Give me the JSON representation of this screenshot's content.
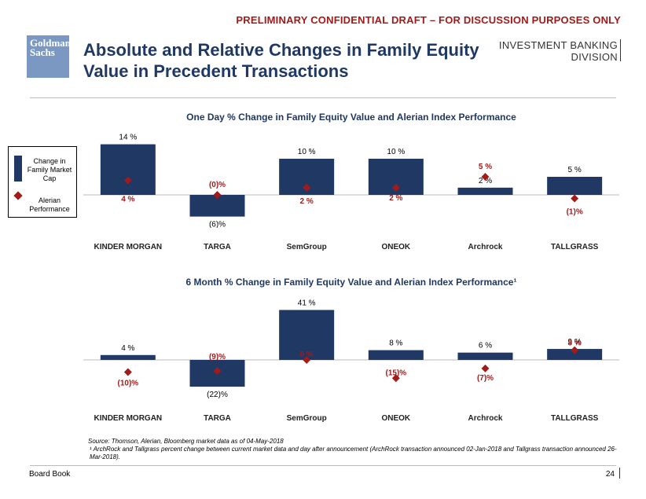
{
  "header": {
    "banner": "PRELIMINARY CONFIDENTIAL DRAFT – FOR DISCUSSION PURPOSES ONLY",
    "logo_line1": "Goldman",
    "logo_line2": "Sachs",
    "title": "Absolute and Relative Changes in Family Equity Value in Precedent Transactions",
    "division_line1": "INVESTMENT BANKING",
    "division_line2": "DIVISION"
  },
  "legend": {
    "bar_label": "Change in Family Market Cap",
    "diamond_label": "Alerian Performance"
  },
  "companies": [
    "KINDER MORGAN",
    "TARGA",
    "SemGroup",
    "ONEOK",
    "Archrock",
    "TALLGRASS"
  ],
  "colors": {
    "bar": "#1f3864",
    "diamond": "#a31a1a",
    "banner": "#a31a1a"
  },
  "chart_data": [
    {
      "type": "bar",
      "title": "One Day % Change in Family Equity Value and Alerian Index Performance",
      "categories": [
        "KINDER MORGAN",
        "TARGA",
        "SemGroup",
        "ONEOK",
        "Archrock",
        "TALLGRASS"
      ],
      "series": [
        {
          "name": "Change in Family Market Cap",
          "values": [
            14,
            -6,
            10,
            10,
            2,
            5
          ],
          "labels": [
            "14 %",
            "(6)%",
            "10 %",
            "10 %",
            "2 %",
            "5 %"
          ]
        },
        {
          "name": "Alerian Performance",
          "values": [
            4,
            0,
            2,
            2,
            5,
            -1
          ],
          "labels": [
            "4 %",
            "(0)%",
            "2 %",
            "2 %",
            "5 %",
            "(1)%"
          ]
        }
      ],
      "ylim": [
        -8,
        15
      ]
    },
    {
      "type": "bar",
      "title": "6 Month % Change in Family Equity Value and Alerian Index Performance¹",
      "categories": [
        "KINDER MORGAN",
        "TARGA",
        "SemGroup",
        "ONEOK",
        "Archrock",
        "TALLGRASS"
      ],
      "series": [
        {
          "name": "Change in Family Market Cap",
          "values": [
            4,
            -22,
            41,
            8,
            6,
            9
          ],
          "labels": [
            "4 %",
            "(22)%",
            "41 %",
            "8 %",
            "6 %",
            "9 %"
          ]
        },
        {
          "name": "Alerian Performance",
          "values": [
            -10,
            -9,
            0,
            -15,
            -7,
            8
          ],
          "labels": [
            "(10)%",
            "(9)%",
            "0 %",
            "(15)%",
            "(7)%",
            "8 %"
          ]
        }
      ],
      "ylim": [
        -25,
        42
      ]
    }
  ],
  "footer": {
    "source": "Source: Thomson, Alerian, Bloomberg market data as of 04-May-2018",
    "footnote": "¹ ArchRock and Tallgrass percent change between current market data and day after announcement (ArchRock transaction announced 02-Jan-2018 and Tallgrass transaction announced 26-Mar-2018).",
    "left": "Board Book",
    "page": "24"
  }
}
